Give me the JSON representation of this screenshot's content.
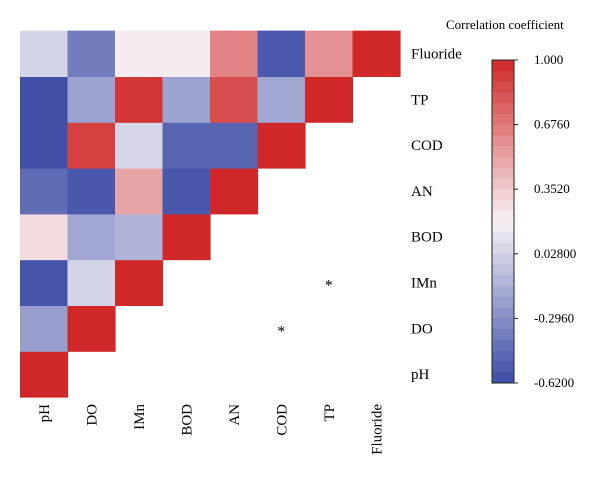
{
  "chart_data": {
    "type": "heatmap",
    "legend_title": "Correlation coefficient",
    "variables": [
      "pH",
      "DO",
      "IMn",
      "BOD",
      "AN",
      "COD",
      "TP",
      "Fluoride"
    ],
    "triangle": "lower",
    "matrix": [
      [
        1.0,
        null,
        null,
        null,
        null,
        null,
        null,
        null
      ],
      [
        -0.22,
        1.0,
        null,
        null,
        null,
        null,
        null,
        null
      ],
      [
        -0.58,
        0.04,
        1.0,
        null,
        null,
        null,
        null,
        null
      ],
      [
        0.28,
        -0.18,
        -0.12,
        1.0,
        null,
        null,
        null,
        null
      ],
      [
        -0.46,
        -0.56,
        0.5,
        -0.56,
        1.0,
        null,
        null,
        null
      ],
      [
        -0.6,
        0.9,
        0.05,
        -0.5,
        -0.5,
        1.0,
        null,
        null
      ],
      [
        -0.6,
        -0.2,
        0.95,
        -0.2,
        0.85,
        -0.18,
        1.0,
        null
      ],
      [
        0.04,
        -0.38,
        0.22,
        0.22,
        0.64,
        -0.55,
        0.58,
        1.0
      ]
    ],
    "significance": [
      {
        "row": "DO",
        "col": "COD",
        "mark": "*"
      },
      {
        "row": "IMn",
        "col": "TP",
        "mark": "*"
      }
    ],
    "colorbar": {
      "ticks": [
        "1.000",
        "0.6760",
        "0.3520",
        "0.02800",
        "-0.2960",
        "-0.6200"
      ],
      "tick_values": [
        1.0,
        0.676,
        0.352,
        0.028,
        -0.296,
        -0.62
      ],
      "min": -0.62,
      "max": 1.0,
      "steps": 30
    },
    "colors": {
      "low": "#3b4ca5",
      "mid": "#f7f3f6",
      "high": "#d02828"
    }
  }
}
